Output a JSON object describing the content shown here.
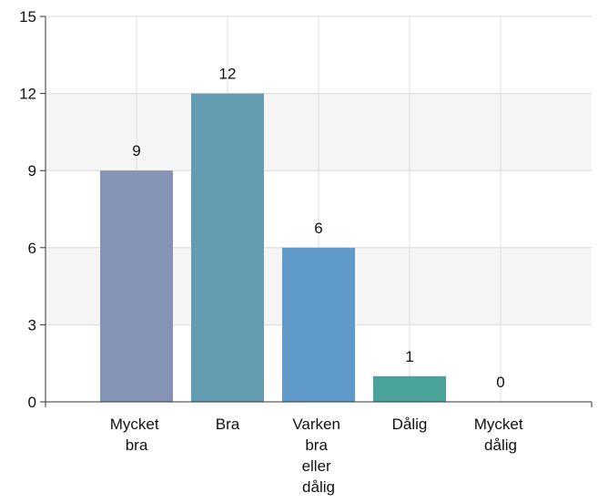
{
  "chart_data": {
    "type": "bar",
    "categories": [
      "Mycket bra",
      "Bra",
      "Varken bra eller dålig",
      "Dålig",
      "Mycket dålig"
    ],
    "values": [
      9,
      12,
      6,
      1,
      0
    ],
    "colors": [
      "#8593b5",
      "#649db1",
      "#5f9acb",
      "#4aa39b",
      "#6aae8c"
    ],
    "ylim": [
      0,
      15
    ],
    "yticks": [
      0,
      3,
      6,
      9,
      12,
      15
    ],
    "grid": true,
    "bands": true
  }
}
